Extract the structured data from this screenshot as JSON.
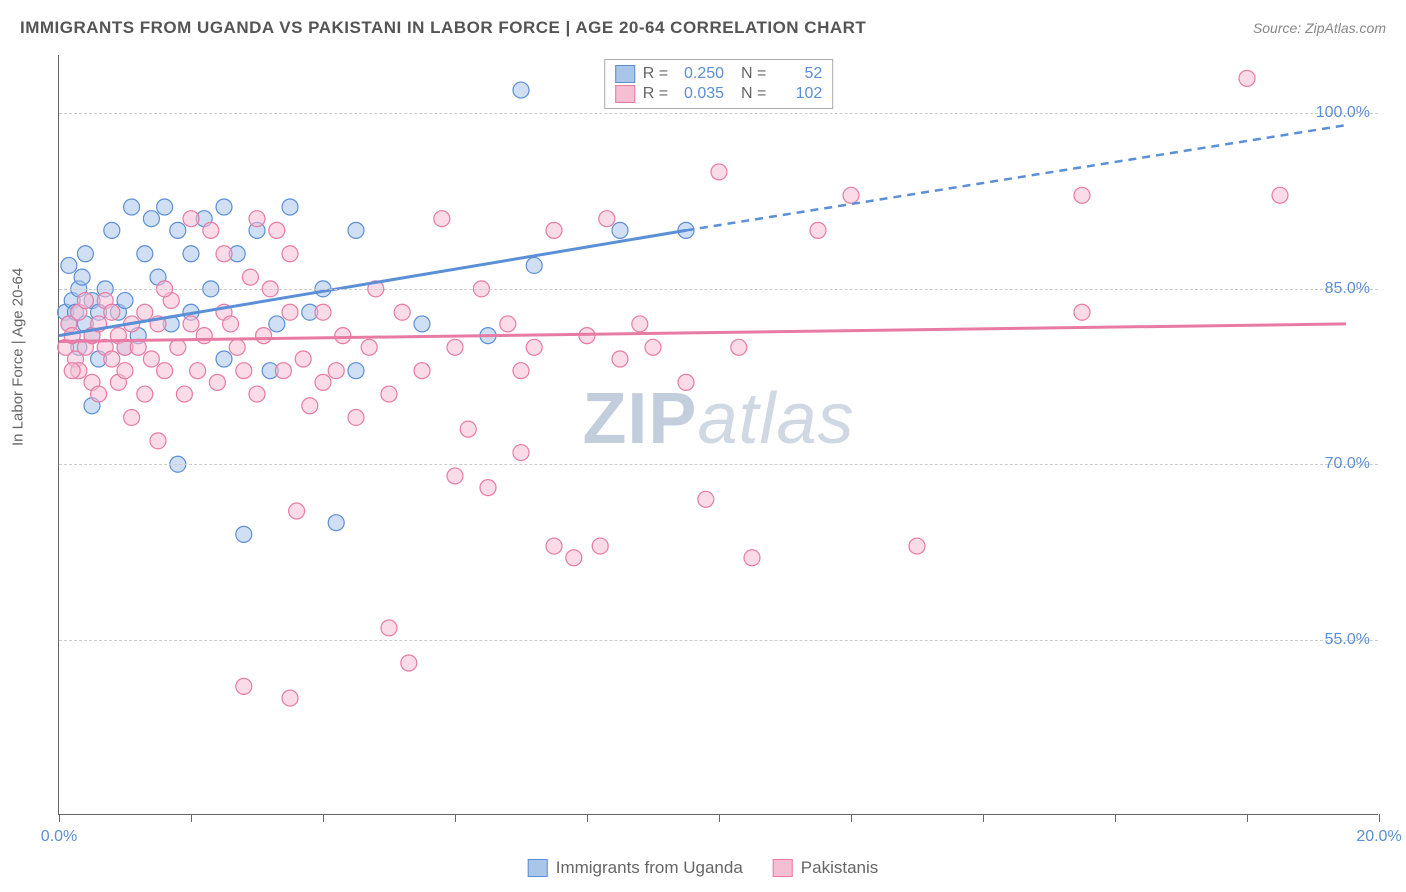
{
  "header": {
    "title": "IMMIGRANTS FROM UGANDA VS PAKISTANI IN LABOR FORCE | AGE 20-64 CORRELATION CHART",
    "source": "Source: ZipAtlas.com"
  },
  "chart": {
    "type": "scatter",
    "y_axis_label": "In Labor Force | Age 20-64",
    "xlim": [
      0,
      20
    ],
    "ylim": [
      40,
      105
    ],
    "xtick_positions": [
      0,
      2,
      4,
      6,
      8,
      10,
      12,
      14,
      16,
      18,
      20
    ],
    "xtick_labels": {
      "0": "0.0%",
      "20": "20.0%"
    },
    "ytick_positions": [
      55,
      70,
      85,
      100
    ],
    "ytick_labels": [
      "55.0%",
      "70.0%",
      "85.0%",
      "100.0%"
    ],
    "grid_color": "#cccccc",
    "axis_color": "#666666",
    "background_color": "#ffffff",
    "label_color": "#5b8fd6",
    "marker_radius": 8,
    "marker_opacity": 0.55,
    "series": [
      {
        "name": "Immigrants from Uganda",
        "color": "#5b8fd6",
        "fill": "#a9c5ea",
        "R": "0.250",
        "N": "52",
        "trend": {
          "x1": 0,
          "y1": 81,
          "x2_solid": 9.5,
          "y2_solid": 90,
          "x2_dash": 19.5,
          "y2_dash": 99
        },
        "points": [
          [
            0.1,
            83
          ],
          [
            0.15,
            82
          ],
          [
            0.2,
            84
          ],
          [
            0.25,
            83
          ],
          [
            0.3,
            85
          ],
          [
            0.3,
            80
          ],
          [
            0.35,
            86
          ],
          [
            0.4,
            82
          ],
          [
            0.4,
            88
          ],
          [
            0.5,
            81
          ],
          [
            0.5,
            84
          ],
          [
            0.6,
            83
          ],
          [
            0.6,
            79
          ],
          [
            0.7,
            85
          ],
          [
            0.8,
            90
          ],
          [
            0.9,
            83
          ],
          [
            1.0,
            80
          ],
          [
            1.0,
            84
          ],
          [
            1.1,
            92
          ],
          [
            1.2,
            81
          ],
          [
            1.3,
            88
          ],
          [
            1.4,
            91
          ],
          [
            1.5,
            86
          ],
          [
            1.6,
            92
          ],
          [
            1.7,
            82
          ],
          [
            1.8,
            90
          ],
          [
            1.8,
            70
          ],
          [
            2.0,
            88
          ],
          [
            2.0,
            83
          ],
          [
            2.2,
            91
          ],
          [
            2.3,
            85
          ],
          [
            2.5,
            92
          ],
          [
            2.5,
            79
          ],
          [
            2.7,
            88
          ],
          [
            2.8,
            64
          ],
          [
            3.0,
            90
          ],
          [
            3.3,
            82
          ],
          [
            3.5,
            92
          ],
          [
            3.8,
            83
          ],
          [
            4.0,
            85
          ],
          [
            4.2,
            65
          ],
          [
            4.5,
            78
          ],
          [
            4.5,
            90
          ],
          [
            5.5,
            82
          ],
          [
            6.5,
            81
          ],
          [
            7.0,
            102
          ],
          [
            7.2,
            87
          ],
          [
            8.5,
            90
          ],
          [
            9.5,
            90
          ],
          [
            0.15,
            87
          ],
          [
            0.5,
            75
          ],
          [
            3.2,
            78
          ]
        ]
      },
      {
        "name": "Pakistanis",
        "color": "#e77ba4",
        "fill": "#f5bed3",
        "R": "0.035",
        "N": "102",
        "trend": {
          "x1": 0,
          "y1": 80.5,
          "x2_solid": 19.5,
          "y2_solid": 82,
          "x2_dash": 19.5,
          "y2_dash": 82
        },
        "points": [
          [
            0.1,
            80
          ],
          [
            0.15,
            82
          ],
          [
            0.2,
            81
          ],
          [
            0.25,
            79
          ],
          [
            0.3,
            83
          ],
          [
            0.3,
            78
          ],
          [
            0.4,
            80
          ],
          [
            0.4,
            84
          ],
          [
            0.5,
            77
          ],
          [
            0.5,
            81
          ],
          [
            0.6,
            82
          ],
          [
            0.6,
            76
          ],
          [
            0.7,
            80
          ],
          [
            0.7,
            84
          ],
          [
            0.8,
            79
          ],
          [
            0.8,
            83
          ],
          [
            0.9,
            77
          ],
          [
            0.9,
            81
          ],
          [
            1.0,
            80
          ],
          [
            1.0,
            78
          ],
          [
            1.1,
            82
          ],
          [
            1.1,
            74
          ],
          [
            1.2,
            80
          ],
          [
            1.3,
            83
          ],
          [
            1.3,
            76
          ],
          [
            1.4,
            79
          ],
          [
            1.5,
            82
          ],
          [
            1.5,
            72
          ],
          [
            1.6,
            78
          ],
          [
            1.7,
            84
          ],
          [
            1.8,
            80
          ],
          [
            1.9,
            76
          ],
          [
            2.0,
            82
          ],
          [
            2.0,
            91
          ],
          [
            2.1,
            78
          ],
          [
            2.2,
            81
          ],
          [
            2.3,
            90
          ],
          [
            2.4,
            77
          ],
          [
            2.5,
            83
          ],
          [
            2.5,
            88
          ],
          [
            2.7,
            80
          ],
          [
            2.8,
            78
          ],
          [
            2.9,
            86
          ],
          [
            3.0,
            91
          ],
          [
            3.0,
            76
          ],
          [
            3.1,
            81
          ],
          [
            3.3,
            90
          ],
          [
            3.4,
            78
          ],
          [
            3.5,
            83
          ],
          [
            3.5,
            88
          ],
          [
            3.6,
            66
          ],
          [
            3.7,
            79
          ],
          [
            3.8,
            75
          ],
          [
            4.0,
            77
          ],
          [
            4.0,
            83
          ],
          [
            4.2,
            78
          ],
          [
            4.3,
            81
          ],
          [
            4.5,
            74
          ],
          [
            4.7,
            80
          ],
          [
            5.0,
            76
          ],
          [
            5.0,
            56
          ],
          [
            5.2,
            83
          ],
          [
            5.3,
            53
          ],
          [
            5.5,
            78
          ],
          [
            5.8,
            91
          ],
          [
            6.0,
            69
          ],
          [
            6.0,
            80
          ],
          [
            6.2,
            73
          ],
          [
            6.5,
            68
          ],
          [
            6.8,
            82
          ],
          [
            7.0,
            71
          ],
          [
            7.2,
            80
          ],
          [
            7.5,
            63
          ],
          [
            7.5,
            90
          ],
          [
            7.8,
            62
          ],
          [
            8.0,
            81
          ],
          [
            8.2,
            63
          ],
          [
            8.5,
            79
          ],
          [
            8.8,
            82
          ],
          [
            9.0,
            80
          ],
          [
            9.5,
            77
          ],
          [
            9.8,
            67
          ],
          [
            10.0,
            95
          ],
          [
            10.3,
            80
          ],
          [
            10.5,
            62
          ],
          [
            11.5,
            90
          ],
          [
            12.0,
            93
          ],
          [
            13.0,
            63
          ],
          [
            15.5,
            93
          ],
          [
            15.5,
            83
          ],
          [
            18.0,
            103
          ],
          [
            18.5,
            93
          ],
          [
            0.2,
            78
          ],
          [
            1.6,
            85
          ],
          [
            2.6,
            82
          ],
          [
            3.2,
            85
          ],
          [
            4.8,
            85
          ],
          [
            6.4,
            85
          ],
          [
            8.3,
            91
          ],
          [
            7.0,
            78
          ],
          [
            2.8,
            51
          ],
          [
            3.5,
            50
          ]
        ]
      }
    ],
    "watermark": {
      "prefix": "ZIP",
      "suffix": "atlas"
    }
  },
  "legend_bottom": [
    {
      "label": "Immigrants from Uganda",
      "fill": "#a9c5ea",
      "stroke": "#5b8fd6"
    },
    {
      "label": "Pakistanis",
      "fill": "#f5bed3",
      "stroke": "#e77ba4"
    }
  ]
}
